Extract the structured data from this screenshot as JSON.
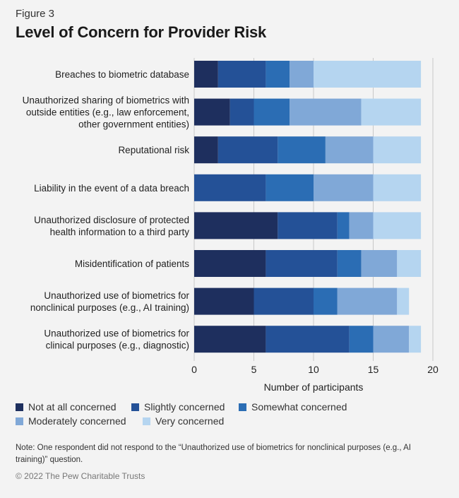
{
  "figure_label": "Figure 3",
  "title": "Level of Concern for Provider Risk",
  "chart_data": {
    "type": "bar",
    "orientation": "horizontal",
    "stacked": true,
    "title": "Level of Concern for Provider Risk",
    "xlabel": "Number of participants",
    "ylabel": "",
    "xlim": [
      0,
      20
    ],
    "xticks": [
      0,
      5,
      10,
      15,
      20
    ],
    "grid": true,
    "legend_position": "bottom",
    "categories": [
      [
        "Breaches to biometric database"
      ],
      [
        "Unauthorized sharing of biometrics with",
        "outside entities (e.g., law enforcement,",
        "other government entities)"
      ],
      [
        "Reputational risk"
      ],
      [
        "Liability in the event of a data breach"
      ],
      [
        "Unauthorized disclosure of protected",
        "health information to a third party"
      ],
      [
        "Misidentification of patients"
      ],
      [
        "Unauthorized use of biometrics for",
        "nonclinical purposes (e.g., AI training)"
      ],
      [
        "Unauthorized use of biometrics for",
        "clinical purposes (e.g., diagnostic)"
      ]
    ],
    "series": [
      {
        "name": "Not at all concerned",
        "color": "#1e2f5e",
        "values": [
          2,
          3,
          2,
          0,
          7,
          6,
          5,
          6
        ]
      },
      {
        "name": "Slightly concerned",
        "color": "#245197",
        "values": [
          4,
          2,
          5,
          6,
          5,
          6,
          5,
          7
        ]
      },
      {
        "name": "Somewhat concerned",
        "color": "#2b6db4",
        "values": [
          2,
          3,
          4,
          4,
          1,
          2,
          2,
          2
        ]
      },
      {
        "name": "Moderately concerned",
        "color": "#80a8d7",
        "values": [
          2,
          6,
          4,
          5,
          2,
          3,
          5,
          3
        ]
      },
      {
        "name": "Very concerned",
        "color": "#b5d5f0",
        "values": [
          9,
          5,
          4,
          4,
          4,
          2,
          1,
          1
        ]
      }
    ]
  },
  "legend": {
    "items": [
      "Not at all concerned",
      "Slightly concerned",
      "Somewhat concerned",
      "Moderately concerned",
      "Very concerned"
    ]
  },
  "note": "Note: One respondent did not respond to the “Unauthorized use of biometrics for nonclinical purposes (e.g., AI training)” question.",
  "copyright": "© 2022 The Pew Charitable Trusts"
}
